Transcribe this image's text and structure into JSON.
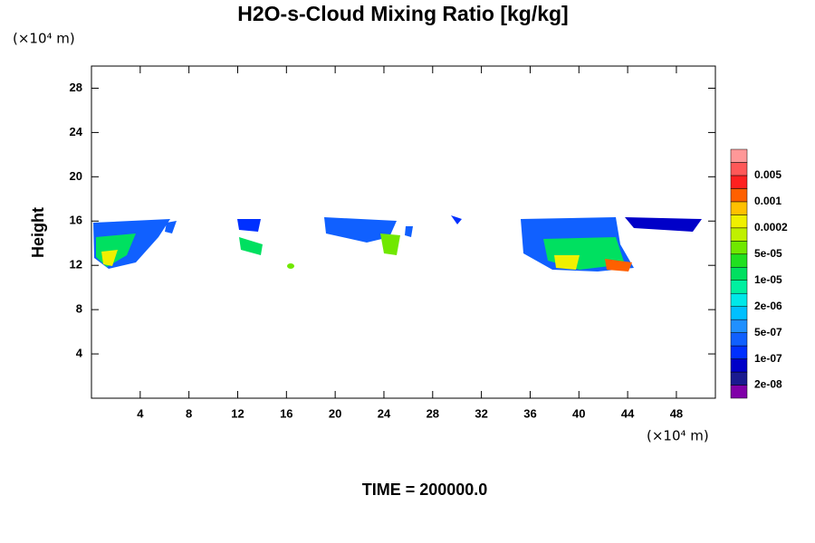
{
  "chart_data": {
    "type": "contour",
    "title": "H2O-s-Cloud Mixing Ratio [kg/kg]",
    "ylabel": "Height",
    "xunit": "(×10⁴ m)",
    "yunit": "(×10⁴ m)",
    "footer": "TIME = 200000.0",
    "xlim": [
      0,
      51.2
    ],
    "xticks": [
      4,
      8,
      12,
      16,
      20,
      24,
      28,
      32,
      36,
      40,
      44,
      48
    ],
    "ylim": [
      0,
      30
    ],
    "yticks": [
      4,
      8,
      12,
      16,
      20,
      24,
      28
    ],
    "colorbar": {
      "colors": [
        "#8000a8",
        "#1a1a90",
        "#0000c8",
        "#0030ff",
        "#1060ff",
        "#2090ff",
        "#00c0ff",
        "#00e8e8",
        "#00f0a0",
        "#00e060",
        "#20e020",
        "#70e800",
        "#c0f000",
        "#f0f000",
        "#ffc000",
        "#ff6000",
        "#ff2020",
        "#ff5858",
        "#ff9898"
      ],
      "ticks": [
        {
          "value": 2e-08,
          "label": "2e-08"
        },
        {
          "value": 1e-07,
          "label": "1e-07"
        },
        {
          "value": 5e-07,
          "label": "5e-07"
        },
        {
          "value": 2e-06,
          "label": "2e-06"
        },
        {
          "value": 1e-05,
          "label": "1e-05"
        },
        {
          "value": 5e-05,
          "label": "5e-05"
        },
        0.0002,
        0.001,
        0.005
      ]
    }
  }
}
